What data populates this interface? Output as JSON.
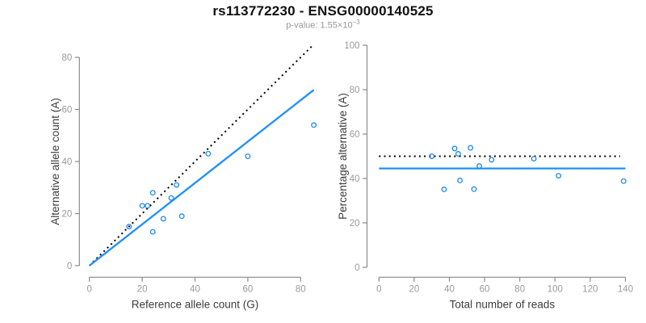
{
  "header": {
    "title": "rs113772230 - ENSG00000140525",
    "pvalue_text": "p-value: 1.55×10",
    "pvalue_exponent": "−3"
  },
  "colors": {
    "point_blue": "#2088EE",
    "line_blue": "#1E90FF",
    "dotted_black": "#000000",
    "axis_gray": "#8a8a8a",
    "tick_label_gray": "#9a9a9a",
    "axis_label_dark": "#3d3d3d"
  },
  "chart_data": [
    {
      "name": "allele-counts",
      "type": "scatter",
      "xlabel": "Reference allele count (G)",
      "ylabel": "Alternative allele count (A)",
      "xlim": [
        0,
        88
      ],
      "ylim": [
        0,
        88
      ],
      "xticks": [
        0,
        20,
        40,
        60,
        80
      ],
      "yticks": [
        0,
        20,
        40,
        60,
        80
      ],
      "grid": false,
      "points": [
        [
          15,
          15
        ],
        [
          20,
          23
        ],
        [
          22,
          23
        ],
        [
          24,
          13
        ],
        [
          24,
          28
        ],
        [
          28,
          18
        ],
        [
          31,
          26
        ],
        [
          33,
          31
        ],
        [
          35,
          19
        ],
        [
          45,
          43
        ],
        [
          60,
          42
        ],
        [
          85,
          54
        ]
      ],
      "lines": [
        {
          "name": "identity-line",
          "style": "dotted",
          "from": [
            0,
            0
          ],
          "to": [
            85,
            85
          ]
        },
        {
          "name": "fitted-ratio-line",
          "style": "solid",
          "from": [
            0,
            0
          ],
          "to": [
            85,
            67.5
          ]
        }
      ]
    },
    {
      "name": "percentage-alternative",
      "type": "scatter",
      "xlabel": "Total number of reads",
      "ylabel": "Percentage alternative (A)",
      "xlim": [
        0,
        140
      ],
      "ylim": [
        0,
        100
      ],
      "xticks": [
        0,
        20,
        40,
        60,
        80,
        100,
        120,
        140
      ],
      "yticks": [
        0,
        20,
        40,
        60,
        80,
        100
      ],
      "grid": false,
      "points": [
        [
          30,
          50
        ],
        [
          37,
          35.1
        ],
        [
          43,
          53.5
        ],
        [
          45,
          51.1
        ],
        [
          46,
          39.1
        ],
        [
          52,
          53.8
        ],
        [
          54,
          35.2
        ],
        [
          57,
          45.6
        ],
        [
          64,
          48.4
        ],
        [
          88,
          48.9
        ],
        [
          102,
          41.2
        ],
        [
          139,
          38.8
        ]
      ],
      "lines": [
        {
          "name": "fifty-percent-line",
          "style": "dotted",
          "from": [
            0,
            50
          ],
          "to": [
            137,
            50
          ]
        },
        {
          "name": "mean-percentage-line",
          "style": "solid",
          "from": [
            0,
            44.5
          ],
          "to": [
            140,
            44.5
          ]
        }
      ]
    }
  ]
}
